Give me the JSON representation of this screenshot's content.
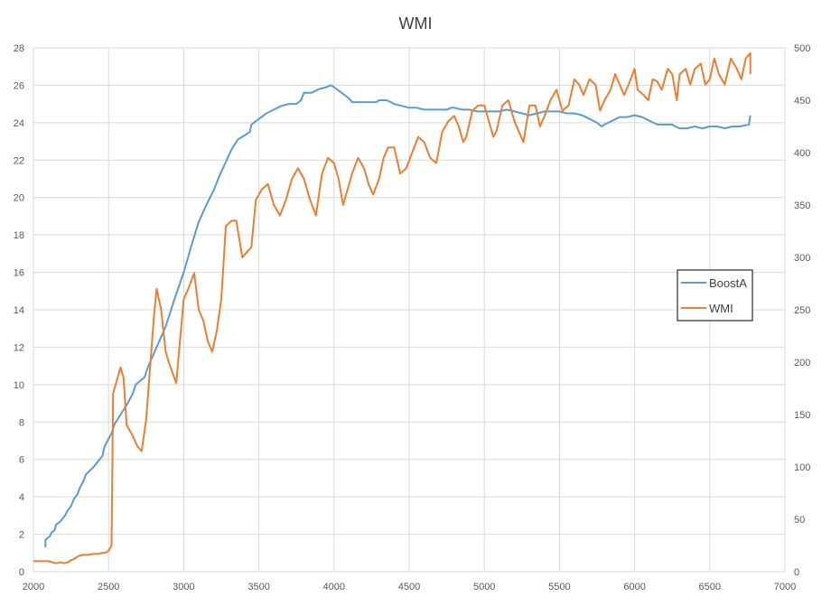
{
  "chart_data": {
    "type": "line",
    "title": "WMI",
    "xlabel": "",
    "ylabel": "",
    "y2label": "",
    "xlim": [
      2000,
      7000
    ],
    "ylim": [
      0,
      28
    ],
    "y2lim": [
      0,
      500
    ],
    "x_ticks": [
      2000,
      2500,
      3000,
      3500,
      4000,
      4500,
      5000,
      5500,
      6000,
      6500,
      7000
    ],
    "y_ticks": [
      0,
      2,
      4,
      6,
      8,
      10,
      12,
      14,
      16,
      18,
      20,
      22,
      24,
      26,
      28
    ],
    "y2_ticks": [
      0,
      50,
      100,
      150,
      200,
      250,
      300,
      350,
      400,
      450,
      500
    ],
    "grid": true,
    "legend_position": "right",
    "series": [
      {
        "name": "BoostA",
        "axis": "left",
        "color": "#5B9BD5",
        "points": [
          [
            2080,
            1.3
          ],
          [
            2080,
            1.7
          ],
          [
            2110,
            1.9
          ],
          [
            2120,
            2.1
          ],
          [
            2140,
            2.2
          ],
          [
            2150,
            2.5
          ],
          [
            2180,
            2.7
          ],
          [
            2210,
            3.0
          ],
          [
            2230,
            3.3
          ],
          [
            2250,
            3.5
          ],
          [
            2270,
            3.9
          ],
          [
            2290,
            4.1
          ],
          [
            2310,
            4.5
          ],
          [
            2330,
            4.8
          ],
          [
            2350,
            5.2
          ],
          [
            2400,
            5.6
          ],
          [
            2460,
            6.2
          ],
          [
            2470,
            6.6
          ],
          [
            2480,
            6.8
          ],
          [
            2500,
            7.1
          ],
          [
            2520,
            7.4
          ],
          [
            2540,
            7.9
          ],
          [
            2580,
            8.4
          ],
          [
            2620,
            8.9
          ],
          [
            2660,
            9.5
          ],
          [
            2680,
            10.0
          ],
          [
            2740,
            10.4
          ],
          [
            2760,
            10.9
          ],
          [
            2820,
            12.0
          ],
          [
            2880,
            13.1
          ],
          [
            2940,
            14.6
          ],
          [
            3000,
            16.0
          ],
          [
            3050,
            17.4
          ],
          [
            3100,
            18.7
          ],
          [
            3150,
            19.6
          ],
          [
            3200,
            20.4
          ],
          [
            3240,
            21.2
          ],
          [
            3280,
            21.9
          ],
          [
            3320,
            22.6
          ],
          [
            3360,
            23.1
          ],
          [
            3400,
            23.3
          ],
          [
            3440,
            23.5
          ],
          [
            3450,
            23.9
          ],
          [
            3500,
            24.2
          ],
          [
            3550,
            24.5
          ],
          [
            3600,
            24.7
          ],
          [
            3650,
            24.9
          ],
          [
            3700,
            25.0
          ],
          [
            3750,
            25.0
          ],
          [
            3780,
            25.2
          ],
          [
            3800,
            25.6
          ],
          [
            3850,
            25.6
          ],
          [
            3900,
            25.8
          ],
          [
            3950,
            25.9
          ],
          [
            3980,
            26.0
          ],
          [
            4000,
            25.9
          ],
          [
            4050,
            25.6
          ],
          [
            4100,
            25.3
          ],
          [
            4120,
            25.1
          ],
          [
            4200,
            25.1
          ],
          [
            4280,
            25.1
          ],
          [
            4300,
            25.2
          ],
          [
            4350,
            25.2
          ],
          [
            4380,
            25.1
          ],
          [
            4400,
            25.0
          ],
          [
            4450,
            24.9
          ],
          [
            4500,
            24.8
          ],
          [
            4550,
            24.8
          ],
          [
            4600,
            24.7
          ],
          [
            4700,
            24.7
          ],
          [
            4750,
            24.7
          ],
          [
            4780,
            24.8
          ],
          [
            4800,
            24.8
          ],
          [
            4850,
            24.7
          ],
          [
            4900,
            24.7
          ],
          [
            4950,
            24.6
          ],
          [
            5000,
            24.6
          ],
          [
            5100,
            24.6
          ],
          [
            5150,
            24.7
          ],
          [
            5200,
            24.6
          ],
          [
            5250,
            24.5
          ],
          [
            5300,
            24.4
          ],
          [
            5350,
            24.5
          ],
          [
            5400,
            24.6
          ],
          [
            5450,
            24.6
          ],
          [
            5500,
            24.6
          ],
          [
            5550,
            24.5
          ],
          [
            5600,
            24.5
          ],
          [
            5650,
            24.4
          ],
          [
            5700,
            24.2
          ],
          [
            5750,
            24.0
          ],
          [
            5780,
            23.8
          ],
          [
            5800,
            23.9
          ],
          [
            5850,
            24.1
          ],
          [
            5900,
            24.3
          ],
          [
            5950,
            24.3
          ],
          [
            6000,
            24.4
          ],
          [
            6050,
            24.3
          ],
          [
            6100,
            24.1
          ],
          [
            6150,
            23.9
          ],
          [
            6200,
            23.9
          ],
          [
            6250,
            23.9
          ],
          [
            6270,
            23.8
          ],
          [
            6300,
            23.7
          ],
          [
            6350,
            23.7
          ],
          [
            6400,
            23.8
          ],
          [
            6450,
            23.7
          ],
          [
            6500,
            23.8
          ],
          [
            6550,
            23.8
          ],
          [
            6600,
            23.7
          ],
          [
            6650,
            23.8
          ],
          [
            6700,
            23.8
          ],
          [
            6760,
            23.9
          ],
          [
            6770,
            24.4
          ]
        ]
      },
      {
        "name": "WMI",
        "axis": "right",
        "color": "#ED7D31",
        "points": [
          [
            2000,
            10
          ],
          [
            2050,
            10
          ],
          [
            2100,
            10
          ],
          [
            2150,
            8
          ],
          [
            2180,
            9
          ],
          [
            2200,
            8
          ],
          [
            2230,
            9
          ],
          [
            2250,
            11
          ],
          [
            2270,
            12
          ],
          [
            2300,
            15
          ],
          [
            2330,
            16
          ],
          [
            2360,
            16
          ],
          [
            2400,
            17
          ],
          [
            2430,
            17
          ],
          [
            2460,
            18
          ],
          [
            2480,
            18
          ],
          [
            2500,
            20
          ],
          [
            2520,
            25
          ],
          [
            2530,
            170
          ],
          [
            2550,
            180
          ],
          [
            2580,
            195
          ],
          [
            2600,
            185
          ],
          [
            2620,
            140
          ],
          [
            2660,
            130
          ],
          [
            2690,
            120
          ],
          [
            2720,
            115
          ],
          [
            2750,
            145
          ],
          [
            2800,
            240
          ],
          [
            2820,
            270
          ],
          [
            2850,
            250
          ],
          [
            2880,
            210
          ],
          [
            2900,
            200
          ],
          [
            2950,
            180
          ],
          [
            3000,
            260
          ],
          [
            3030,
            270
          ],
          [
            3070,
            285
          ],
          [
            3100,
            250
          ],
          [
            3130,
            240
          ],
          [
            3160,
            220
          ],
          [
            3190,
            210
          ],
          [
            3220,
            230
          ],
          [
            3250,
            260
          ],
          [
            3280,
            330
          ],
          [
            3320,
            335
          ],
          [
            3350,
            335
          ],
          [
            3390,
            300
          ],
          [
            3420,
            305
          ],
          [
            3450,
            310
          ],
          [
            3480,
            355
          ],
          [
            3520,
            365
          ],
          [
            3560,
            370
          ],
          [
            3600,
            350
          ],
          [
            3640,
            340
          ],
          [
            3680,
            355
          ],
          [
            3720,
            375
          ],
          [
            3760,
            385
          ],
          [
            3800,
            375
          ],
          [
            3840,
            355
          ],
          [
            3880,
            340
          ],
          [
            3920,
            380
          ],
          [
            3960,
            395
          ],
          [
            4000,
            390
          ],
          [
            4030,
            375
          ],
          [
            4060,
            350
          ],
          [
            4090,
            365
          ],
          [
            4120,
            380
          ],
          [
            4160,
            395
          ],
          [
            4200,
            385
          ],
          [
            4230,
            370
          ],
          [
            4260,
            360
          ],
          [
            4300,
            375
          ],
          [
            4330,
            395
          ],
          [
            4360,
            405
          ],
          [
            4400,
            405
          ],
          [
            4440,
            380
          ],
          [
            4480,
            385
          ],
          [
            4520,
            400
          ],
          [
            4560,
            415
          ],
          [
            4600,
            410
          ],
          [
            4640,
            395
          ],
          [
            4680,
            390
          ],
          [
            4720,
            420
          ],
          [
            4760,
            430
          ],
          [
            4800,
            435
          ],
          [
            4830,
            425
          ],
          [
            4860,
            410
          ],
          [
            4880,
            415
          ],
          [
            4920,
            440
          ],
          [
            4960,
            445
          ],
          [
            5000,
            445
          ],
          [
            5030,
            430
          ],
          [
            5060,
            415
          ],
          [
            5080,
            420
          ],
          [
            5120,
            445
          ],
          [
            5160,
            450
          ],
          [
            5200,
            430
          ],
          [
            5230,
            420
          ],
          [
            5260,
            410
          ],
          [
            5300,
            445
          ],
          [
            5340,
            445
          ],
          [
            5370,
            425
          ],
          [
            5400,
            435
          ],
          [
            5440,
            450
          ],
          [
            5480,
            460
          ],
          [
            5520,
            440
          ],
          [
            5560,
            445
          ],
          [
            5600,
            470
          ],
          [
            5630,
            465
          ],
          [
            5660,
            455
          ],
          [
            5700,
            470
          ],
          [
            5740,
            465
          ],
          [
            5770,
            440
          ],
          [
            5800,
            450
          ],
          [
            5840,
            460
          ],
          [
            5870,
            475
          ],
          [
            5900,
            465
          ],
          [
            5930,
            455
          ],
          [
            5960,
            465
          ],
          [
            6000,
            480
          ],
          [
            6020,
            460
          ],
          [
            6060,
            455
          ],
          [
            6090,
            450
          ],
          [
            6120,
            470
          ],
          [
            6150,
            468
          ],
          [
            6180,
            460
          ],
          [
            6220,
            480
          ],
          [
            6250,
            475
          ],
          [
            6280,
            450
          ],
          [
            6300,
            475
          ],
          [
            6340,
            480
          ],
          [
            6370,
            465
          ],
          [
            6400,
            480
          ],
          [
            6440,
            485
          ],
          [
            6470,
            465
          ],
          [
            6500,
            470
          ],
          [
            6530,
            490
          ],
          [
            6560,
            475
          ],
          [
            6600,
            465
          ],
          [
            6640,
            490
          ],
          [
            6680,
            480
          ],
          [
            6710,
            470
          ],
          [
            6740,
            490
          ],
          [
            6770,
            495
          ],
          [
            6770,
            475
          ]
        ]
      }
    ]
  }
}
